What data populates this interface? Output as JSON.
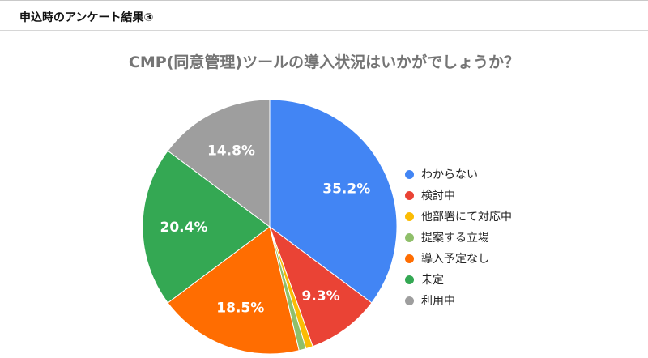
{
  "header": {
    "title": "申込時のアンケート結果③"
  },
  "chart_data": {
    "type": "pie",
    "title": "CMP(同意管理)ツールの導入状況はいかがでしょうか？",
    "legend_position": "right",
    "slices": [
      {
        "name": "わからない",
        "value": 35.2,
        "label": "35.2%",
        "color": "#4285f4"
      },
      {
        "name": "検討中",
        "value": 9.3,
        "label": "9.3%",
        "color": "#ea4335"
      },
      {
        "name": "他部署にて対応中",
        "value": 0.9,
        "label": "",
        "color": "#fbbc04"
      },
      {
        "name": "提案する立場",
        "value": 0.9,
        "label": "",
        "color": "#8fbf6a"
      },
      {
        "name": "導入予定なし",
        "value": 18.5,
        "label": "18.5%",
        "color": "#ff6d01"
      },
      {
        "name": "未定",
        "value": 20.4,
        "label": "20.4%",
        "color": "#34a853"
      },
      {
        "name": "利用中",
        "value": 14.8,
        "label": "14.8%",
        "color": "#9e9e9e"
      }
    ]
  }
}
